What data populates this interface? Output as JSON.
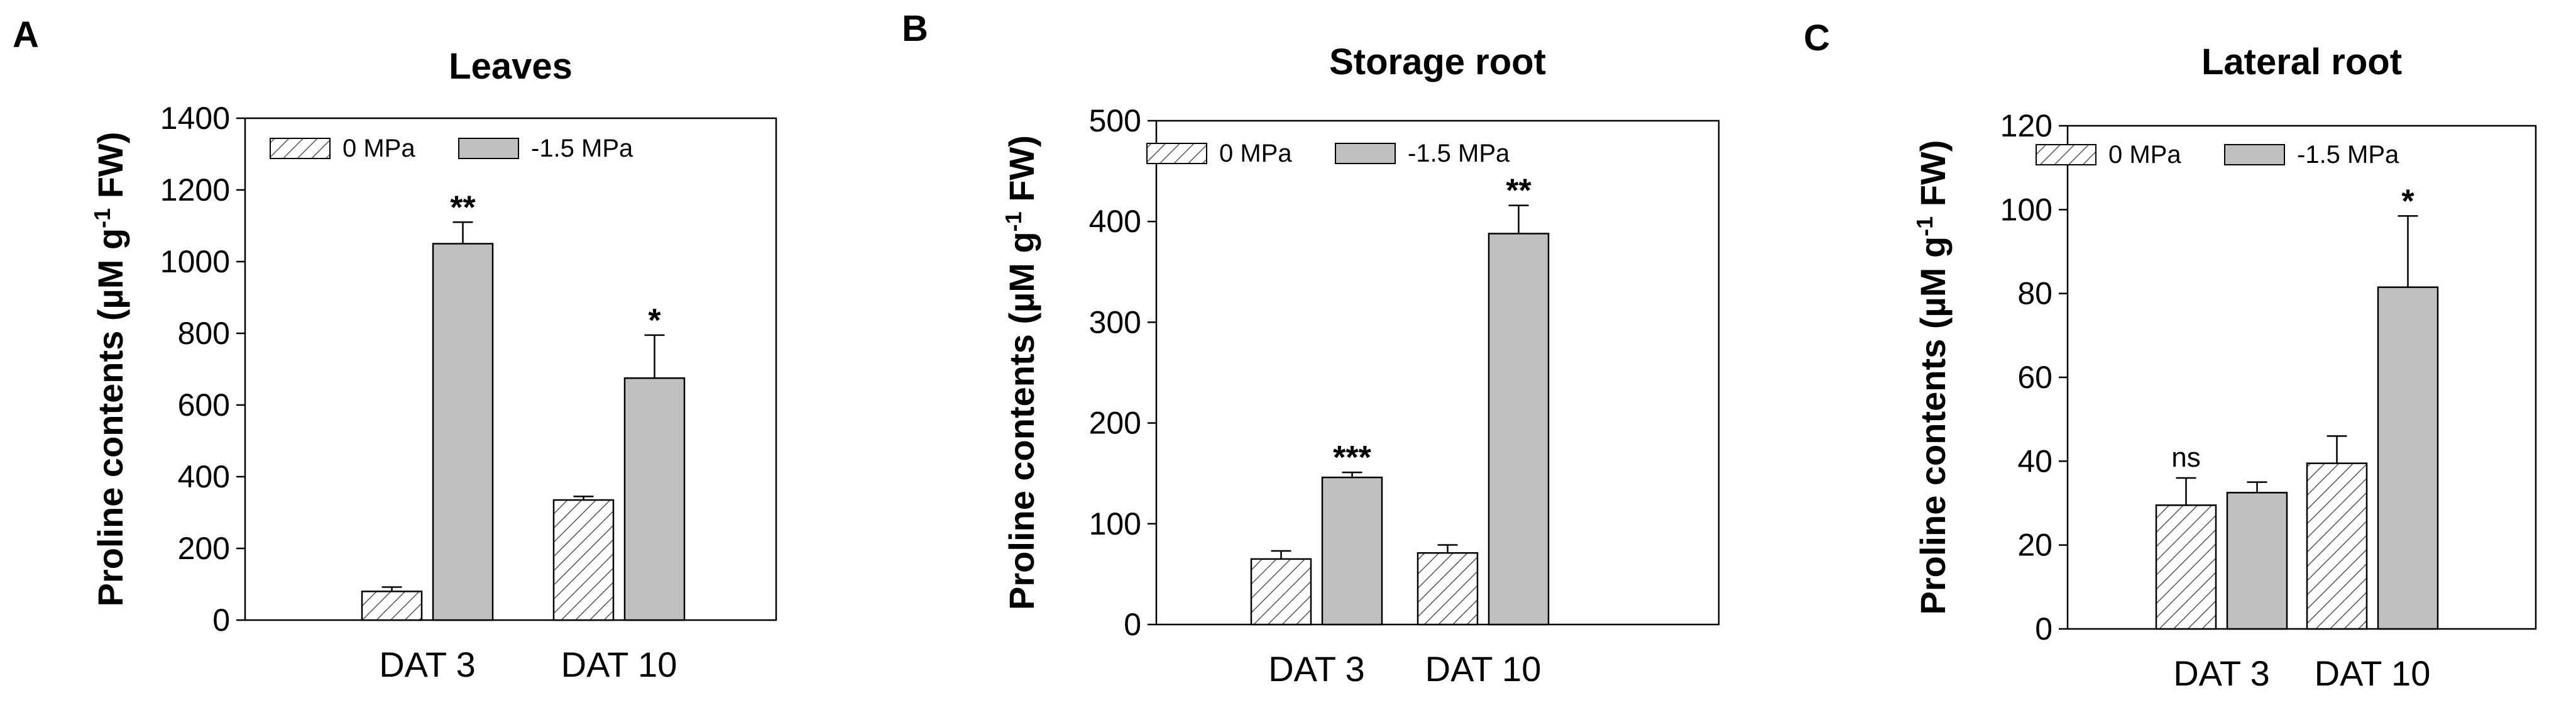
{
  "figure": {
    "panels": [
      {
        "letter": "A"
      },
      {
        "letter": "B"
      },
      {
        "letter": "C"
      }
    ]
  },
  "colors": {
    "axis": "#000000",
    "bar_control": "#ffffff",
    "bar_treated": "#c0c0c0",
    "hatch": "#555555"
  },
  "chart_data": [
    {
      "type": "bar",
      "panel": "A",
      "title": "Leaves",
      "ylabel": "Proline contents (µM g-1 FW)",
      "ylabel_parts": {
        "pre": "Proline contents (µM g",
        "sup": "-1",
        "post": " FW)"
      },
      "xlabel": "",
      "ylim": [
        0,
        1400
      ],
      "yticks": [
        0,
        200,
        400,
        600,
        800,
        1000,
        1200,
        1400
      ],
      "categories": [
        "DAT 3",
        "DAT 10"
      ],
      "legend": {
        "position": "top-left",
        "entries": [
          "0 MPa",
          "-1.5 MPa"
        ]
      },
      "series": [
        {
          "name": "0 MPa",
          "values": [
            80,
            335
          ],
          "errors": [
            12,
            10
          ]
        },
        {
          "name": "-1.5 MPa",
          "values": [
            1050,
            675
          ],
          "errors": [
            60,
            120
          ]
        }
      ],
      "annotations": [
        "**",
        "*"
      ]
    },
    {
      "type": "bar",
      "panel": "B",
      "title": "Storage root",
      "ylabel": "Proline contents (µM g-1 FW)",
      "ylabel_parts": {
        "pre": "Proline contents (µM g",
        "sup": "-1",
        "post": " FW)"
      },
      "xlabel": "",
      "ylim": [
        0,
        500
      ],
      "yticks": [
        0,
        100,
        200,
        300,
        400,
        500
      ],
      "categories": [
        "DAT 3",
        "DAT 10"
      ],
      "legend": {
        "position": "top-left",
        "entries": [
          "0 MPa",
          "-1.5 MPa"
        ]
      },
      "series": [
        {
          "name": "0 MPa",
          "values": [
            65,
            71
          ],
          "errors": [
            8,
            8
          ]
        },
        {
          "name": "-1.5 MPa",
          "values": [
            146,
            388
          ],
          "errors": [
            5,
            28
          ]
        }
      ],
      "annotations": [
        "***",
        "**"
      ]
    },
    {
      "type": "bar",
      "panel": "C",
      "title": "Lateral root",
      "ylabel": "Proline contents (µM g-1 FW)",
      "ylabel_parts": {
        "pre": "Proline contents (µM g",
        "sup": "-1",
        "post": " FW)"
      },
      "xlabel": "",
      "ylim": [
        0,
        120
      ],
      "yticks": [
        0,
        20,
        40,
        60,
        80,
        100,
        120
      ],
      "categories": [
        "DAT 3",
        "DAT 10"
      ],
      "legend": {
        "position": "top-left",
        "entries": [
          "0 MPa",
          "-1.5 MPa"
        ]
      },
      "series": [
        {
          "name": "0 MPa",
          "values": [
            29.5,
            39.5
          ],
          "errors": [
            6.5,
            6.5
          ]
        },
        {
          "name": "-1.5 MPa",
          "values": [
            32.5,
            81.5
          ],
          "errors": [
            2.5,
            17
          ]
        }
      ],
      "annotations": [
        "ns",
        "*"
      ]
    }
  ]
}
